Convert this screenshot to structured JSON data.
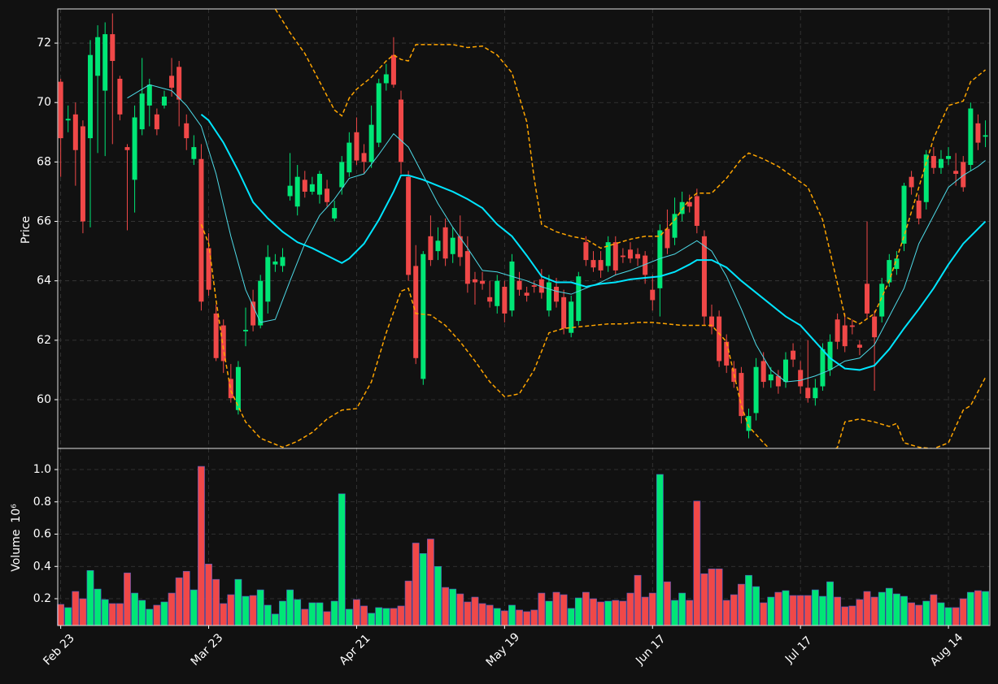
{
  "chart_data": {
    "type": "candlestick",
    "ylabel": "Price",
    "xlim": [
      -0.4,
      125.6
    ],
    "xticks": [
      {
        "value": 0,
        "label": "Feb 23"
      },
      {
        "value": 20,
        "label": "Mar 23"
      },
      {
        "value": 40,
        "label": "Apr 21"
      },
      {
        "value": 60,
        "label": "May 19"
      },
      {
        "value": 80,
        "label": "Jun 17"
      },
      {
        "value": 100,
        "label": "Jul 17"
      },
      {
        "value": 120,
        "label": "Aug 14"
      }
    ],
    "ylim": [
      58.36,
      73.15
    ],
    "yticks": [
      60,
      62,
      64,
      66,
      68,
      70,
      72
    ],
    "grid": true,
    "up_color": "#00e676",
    "down_color": "#f04848",
    "edge_color": "#4a5cc8",
    "open": [
      70.7,
      69.4,
      69.6,
      69.2,
      68.8,
      70.9,
      70.4,
      72.3,
      70.8,
      68.5,
      67.4,
      69.1,
      69.9,
      69.6,
      69.9,
      70.9,
      71.2,
      69.3,
      68.1,
      68.1,
      65.1,
      62.9,
      62.5,
      60.7,
      59.65,
      62.3,
      63.3,
      62.5,
      63.3,
      64.55,
      64.5,
      66.85,
      66.5,
      67.4,
      67.0,
      66.9,
      67.1,
      66.1,
      67.15,
      67.65,
      69.0,
      68.3,
      68.0,
      68.65,
      70.65,
      71.6,
      70.1,
      67.5,
      64.5,
      60.7,
      65.5,
      65.0,
      65.8,
      64.9,
      65.5,
      65.0,
      64.05,
      64.0,
      63.45,
      63.15,
      63.8,
      63.0,
      64.0,
      63.6,
      63.85,
      64.05,
      63.0,
      63.8,
      63.45,
      62.25,
      62.65,
      65.3,
      64.7,
      64.7,
      64.5,
      65.3,
      64.85,
      65.05,
      64.9,
      64.85,
      63.7,
      63.75,
      65.75,
      65.45,
      66.25,
      66.65,
      66.85,
      65.5,
      62.8,
      62.8,
      61.95,
      61.05,
      60.9,
      58.95,
      59.55,
      61.3,
      60.65,
      60.8,
      60.6,
      61.65,
      61.0,
      60.4,
      60.05,
      60.45,
      61.0,
      62.7,
      62.5,
      62.5,
      61.85,
      63.9,
      62.8,
      62.8,
      63.95,
      64.4,
      65.25,
      67.5,
      66.7,
      66.65,
      68.2,
      67.8,
      68.1,
      67.7,
      68.0,
      67.9,
      69.3,
      68.85
    ],
    "high": [
      70.8,
      69.9,
      70.0,
      69.4,
      72.1,
      72.6,
      72.7,
      73.0,
      70.9,
      68.6,
      69.9,
      71.5,
      70.8,
      69.8,
      70.4,
      71.5,
      71.4,
      69.6,
      68.9,
      68.6,
      65.6,
      63.2,
      62.7,
      61.2,
      61.3,
      63.1,
      63.7,
      64.2,
      65.2,
      64.9,
      65.1,
      68.3,
      67.9,
      67.7,
      67.5,
      67.7,
      67.4,
      66.7,
      68.2,
      69.0,
      69.5,
      68.6,
      69.9,
      70.8,
      71.3,
      72.2,
      70.4,
      67.7,
      65.2,
      65.0,
      66.2,
      65.8,
      66.1,
      65.8,
      66.2,
      65.5,
      64.3,
      64.3,
      64.0,
      64.2,
      64.0,
      64.9,
      64.3,
      63.8,
      64.0,
      64.4,
      64.2,
      64.1,
      63.7,
      63.5,
      64.3,
      65.5,
      65.0,
      65.0,
      65.5,
      65.5,
      65.1,
      65.3,
      65.1,
      65.0,
      64.2,
      65.9,
      66.4,
      66.8,
      67.0,
      66.9,
      67.1,
      65.7,
      63.2,
      63.0,
      62.2,
      61.3,
      61.1,
      59.7,
      61.4,
      61.6,
      61.1,
      61.0,
      61.6,
      61.9,
      61.3,
      62.0,
      60.7,
      61.9,
      62.2,
      62.9,
      62.9,
      62.7,
      62.0,
      66.0,
      63.0,
      64.1,
      64.9,
      65.0,
      67.3,
      67.7,
      66.9,
      68.4,
      68.5,
      68.4,
      68.5,
      68.3,
      68.2,
      70.0,
      69.6,
      69.4
    ],
    "low": [
      67.5,
      69.0,
      67.2,
      65.6,
      65.8,
      68.3,
      68.2,
      68.6,
      69.4,
      65.7,
      66.3,
      68.9,
      69.2,
      68.9,
      69.8,
      70.2,
      69.2,
      68.4,
      67.9,
      63.0,
      63.5,
      61.3,
      60.9,
      59.9,
      59.5,
      61.8,
      62.3,
      62.4,
      62.9,
      64.3,
      64.3,
      66.7,
      66.2,
      66.8,
      66.9,
      66.6,
      66.5,
      66.0,
      66.9,
      67.5,
      67.9,
      67.6,
      67.8,
      68.5,
      70.4,
      70.5,
      67.6,
      64.0,
      61.2,
      60.5,
      64.5,
      64.7,
      64.5,
      64.6,
      64.5,
      63.6,
      63.2,
      63.7,
      63.1,
      62.9,
      62.6,
      62.8,
      63.5,
      63.3,
      63.6,
      63.4,
      62.8,
      63.1,
      62.2,
      62.1,
      62.5,
      64.5,
      64.3,
      64.1,
      64.3,
      64.2,
      64.6,
      64.6,
      64.5,
      63.9,
      63.0,
      62.8,
      64.9,
      65.2,
      66.0,
      66.3,
      65.6,
      62.5,
      62.2,
      61.1,
      60.9,
      60.4,
      59.2,
      58.7,
      59.3,
      60.4,
      60.4,
      60.2,
      60.4,
      61.1,
      60.2,
      59.9,
      59.8,
      60.3,
      60.8,
      61.7,
      61.6,
      62.2,
      61.5,
      62.7,
      60.3,
      62.6,
      63.8,
      64.2,
      65.0,
      66.9,
      65.9,
      66.4,
      67.6,
      67.6,
      67.9,
      67.2,
      67.0,
      67.7,
      68.4,
      68.5
    ],
    "close": [
      68.8,
      69.45,
      68.4,
      66.0,
      71.6,
      72.2,
      72.3,
      71.4,
      69.6,
      68.4,
      69.5,
      70.3,
      70.6,
      69.1,
      70.2,
      70.5,
      70.1,
      68.8,
      68.5,
      63.3,
      63.7,
      61.4,
      61.3,
      60.05,
      61.1,
      62.35,
      62.5,
      64.0,
      64.8,
      64.65,
      64.8,
      67.2,
      67.5,
      67.0,
      67.25,
      67.6,
      66.65,
      66.45,
      68.0,
      68.65,
      68.05,
      68.0,
      69.25,
      70.65,
      70.95,
      70.6,
      68.0,
      64.2,
      61.4,
      64.9,
      64.7,
      65.35,
      64.75,
      65.45,
      64.8,
      63.9,
      63.95,
      63.9,
      63.3,
      64.0,
      62.9,
      64.65,
      63.7,
      63.5,
      63.8,
      63.6,
      63.95,
      63.3,
      62.4,
      63.3,
      64.15,
      64.7,
      64.45,
      64.35,
      65.3,
      64.35,
      64.8,
      64.75,
      64.75,
      64.2,
      63.35,
      65.7,
      65.1,
      66.25,
      66.65,
      66.5,
      65.85,
      62.8,
      62.45,
      61.3,
      61.15,
      60.6,
      59.45,
      59.45,
      61.1,
      60.6,
      60.85,
      60.45,
      61.35,
      61.35,
      60.45,
      60.05,
      60.4,
      61.7,
      61.95,
      61.95,
      61.8,
      62.45,
      61.75,
      62.9,
      62.1,
      63.9,
      64.7,
      64.75,
      67.2,
      67.15,
      66.1,
      68.25,
      67.8,
      68.1,
      68.2,
      67.6,
      67.15,
      69.8,
      68.65,
      68.9
    ],
    "lines": [
      {
        "color": "#4dd9e6",
        "width": 1,
        "dashed": false,
        "x": [
          9,
          12,
          15,
          17,
          19,
          21,
          23,
          25,
          27,
          29,
          31,
          33,
          35,
          37,
          39,
          41,
          43,
          45,
          47,
          49,
          51,
          53,
          55,
          57,
          59,
          61,
          63,
          65,
          67,
          69,
          71,
          73,
          75,
          77,
          79,
          81,
          83,
          85,
          86,
          88,
          90,
          92,
          94,
          96,
          98,
          100,
          102,
          104,
          106,
          108,
          110,
          112,
          114,
          116,
          118,
          120,
          122,
          124,
          125
        ],
        "values": [
          70.15,
          70.6,
          70.4,
          69.9,
          69.2,
          67.6,
          65.5,
          63.7,
          62.6,
          62.7,
          64.0,
          65.25,
          66.2,
          66.75,
          67.45,
          67.6,
          68.25,
          68.95,
          68.5,
          67.55,
          66.6,
          65.8,
          65.1,
          64.35,
          64.3,
          64.15,
          64.0,
          63.8,
          63.65,
          63.55,
          63.75,
          63.95,
          64.2,
          64.35,
          64.55,
          64.75,
          64.9,
          65.2,
          65.35,
          65.0,
          64.15,
          63.05,
          61.85,
          61.0,
          60.6,
          60.65,
          60.8,
          61.0,
          61.3,
          61.4,
          61.85,
          62.8,
          63.75,
          65.25,
          66.2,
          67.15,
          67.55,
          67.85,
          68.05
        ]
      },
      {
        "color": "#00e5ff",
        "width": 2,
        "dashed": false,
        "x": [
          19,
          20,
          22,
          24,
          26,
          28,
          30,
          32,
          34,
          36,
          38,
          39,
          41,
          43,
          45,
          46,
          47,
          49,
          51,
          53,
          55,
          57,
          59,
          61,
          63,
          65,
          67,
          69,
          71,
          73,
          75,
          77,
          79,
          81,
          83,
          85,
          86,
          88,
          90,
          92,
          94,
          96,
          98,
          100,
          102,
          104,
          106,
          108,
          110,
          112,
          114,
          116,
          118,
          120,
          122,
          124,
          125
        ],
        "values": [
          69.6,
          69.4,
          68.65,
          67.7,
          66.65,
          66.1,
          65.65,
          65.3,
          65.1,
          64.85,
          64.6,
          64.75,
          65.25,
          66.05,
          67.0,
          67.55,
          67.55,
          67.4,
          67.2,
          67.0,
          66.75,
          66.45,
          65.9,
          65.5,
          64.85,
          64.15,
          63.95,
          63.95,
          63.8,
          63.9,
          63.95,
          64.05,
          64.1,
          64.15,
          64.3,
          64.55,
          64.7,
          64.7,
          64.45,
          64.0,
          63.6,
          63.2,
          62.8,
          62.5,
          61.95,
          61.4,
          61.05,
          61.0,
          61.15,
          61.7,
          62.4,
          63.05,
          63.75,
          64.55,
          65.25,
          65.75,
          66.0
        ]
      },
      {
        "color": "#ffa500",
        "width": 1.5,
        "dashed": true,
        "x": [
          28,
          29,
          31,
          33,
          35,
          37,
          38,
          39,
          40,
          42,
          44,
          45,
          46,
          47,
          48,
          50,
          53,
          55,
          57,
          59,
          61,
          63,
          64,
          65,
          67,
          69,
          71,
          73,
          75,
          77,
          79,
          81,
          83,
          85,
          86,
          88,
          90,
          92,
          93,
          95,
          97,
          99,
          101,
          103,
          105,
          106,
          108,
          110,
          112,
          114,
          116,
          118,
          120,
          122,
          123,
          125
        ],
        "values": [
          73.5,
          73.15,
          72.35,
          71.65,
          70.7,
          69.75,
          69.55,
          70.15,
          70.45,
          70.85,
          71.4,
          71.6,
          71.45,
          71.4,
          71.95,
          71.95,
          71.95,
          71.85,
          71.9,
          71.6,
          71.0,
          69.35,
          67.45,
          65.9,
          65.65,
          65.5,
          65.4,
          65.1,
          65.25,
          65.4,
          65.5,
          65.5,
          66.05,
          66.75,
          66.95,
          66.95,
          67.45,
          68.1,
          68.3,
          68.1,
          67.85,
          67.5,
          67.15,
          66.05,
          63.9,
          62.8,
          62.55,
          62.9,
          64.0,
          65.5,
          67.15,
          68.8,
          69.9,
          70.05,
          70.7,
          71.1
        ]
      },
      {
        "color": "#ffa500",
        "width": 1.5,
        "dashed": true,
        "x": [
          19,
          20,
          21,
          22,
          23,
          25,
          27,
          29,
          30,
          32,
          34,
          36,
          38,
          40,
          42,
          44,
          46,
          47,
          48,
          50,
          52,
          54,
          56,
          58,
          60,
          62,
          64,
          66,
          68,
          70,
          72,
          74,
          76,
          78,
          80,
          82,
          84,
          86,
          88,
          90,
          92,
          93,
          95,
          96,
          98,
          101,
          103,
          105,
          106,
          108,
          110,
          112,
          113,
          114,
          116,
          118,
          120,
          122,
          123,
          125
        ],
        "values": [
          65.9,
          65.25,
          63.35,
          61.7,
          60.3,
          59.25,
          58.7,
          58.5,
          58.4,
          58.6,
          58.9,
          59.35,
          59.65,
          59.7,
          60.6,
          62.25,
          63.65,
          63.75,
          62.9,
          62.85,
          62.5,
          61.95,
          61.3,
          60.6,
          60.1,
          60.2,
          61.0,
          62.25,
          62.4,
          62.45,
          62.5,
          62.55,
          62.55,
          62.6,
          62.6,
          62.55,
          62.5,
          62.5,
          62.5,
          61.95,
          59.8,
          59.1,
          58.55,
          58.3,
          57.8,
          57.8,
          58.0,
          58.4,
          59.25,
          59.35,
          59.25,
          59.1,
          59.2,
          58.55,
          58.4,
          58.35,
          58.55,
          59.65,
          59.8,
          60.75
        ]
      }
    ],
    "volume": {
      "ylabel": "Volume",
      "scale_label": "10⁶",
      "ylim": [
        0.034,
        1.131
      ],
      "yticks": [
        0.2,
        0.4,
        0.6,
        0.8,
        {
          "value": 1.0,
          "label": "1.0"
        }
      ],
      "values": [
        0.165,
        0.145,
        0.245,
        0.2,
        0.375,
        0.26,
        0.195,
        0.17,
        0.17,
        0.36,
        0.235,
        0.19,
        0.135,
        0.16,
        0.18,
        0.235,
        0.33,
        0.37,
        0.255,
        1.02,
        0.415,
        0.32,
        0.17,
        0.225,
        0.32,
        0.215,
        0.22,
        0.255,
        0.16,
        0.105,
        0.185,
        0.255,
        0.195,
        0.135,
        0.175,
        0.175,
        0.12,
        0.185,
        0.85,
        0.135,
        0.195,
        0.155,
        0.11,
        0.145,
        0.14,
        0.14,
        0.155,
        0.31,
        0.545,
        0.48,
        0.57,
        0.4,
        0.27,
        0.26,
        0.23,
        0.18,
        0.21,
        0.17,
        0.16,
        0.14,
        0.125,
        0.16,
        0.13,
        0.12,
        0.13,
        0.235,
        0.185,
        0.24,
        0.225,
        0.14,
        0.205,
        0.24,
        0.2,
        0.18,
        0.185,
        0.19,
        0.185,
        0.235,
        0.345,
        0.21,
        0.235,
        0.97,
        0.305,
        0.19,
        0.235,
        0.19,
        0.805,
        0.355,
        0.385,
        0.385,
        0.19,
        0.225,
        0.29,
        0.345,
        0.275,
        0.175,
        0.21,
        0.24,
        0.25,
        0.22,
        0.22,
        0.22,
        0.255,
        0.215,
        0.305,
        0.21,
        0.15,
        0.155,
        0.195,
        0.245,
        0.21,
        0.24,
        0.265,
        0.23,
        0.215,
        0.175,
        0.16,
        0.185,
        0.225,
        0.175,
        0.145,
        0.145,
        0.2,
        0.24,
        0.25,
        0.245
      ]
    }
  }
}
